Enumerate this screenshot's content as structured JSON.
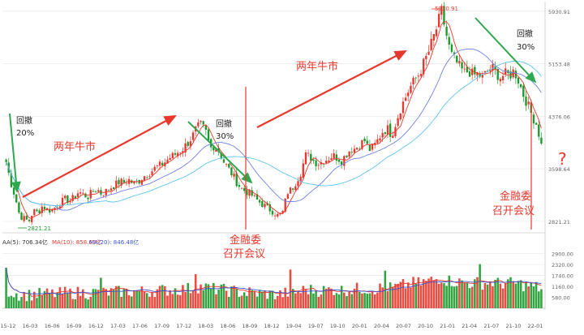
{
  "chart_data": [
    {
      "type": "candlestick",
      "name": "price",
      "y_ticks": [
        "5930.91",
        "5153.48",
        "4376.06",
        "3598.64",
        "2821.21"
      ],
      "y_tick_values": [
        5930.91,
        5153.48,
        4376.06,
        3598.64,
        2821.21
      ],
      "ylim": [
        2700,
        6000
      ],
      "x_ticks": [
        "15-12",
        "16-03",
        "16-06",
        "16-09",
        "16-12",
        "17-03",
        "17-06",
        "17-09",
        "17-12",
        "18-03",
        "18-06",
        "18-09",
        "18-12",
        "19-04",
        "19-07",
        "19-10",
        "20-01",
        "20-04",
        "20-07",
        "20-10",
        "21-01",
        "21-04",
        "21-07",
        "21-10",
        "22-01"
      ],
      "close_series": [
        3700,
        3400,
        3180,
        2900,
        2860,
        2821,
        2980,
        2950,
        3050,
        3000,
        2980,
        3040,
        3100,
        3150,
        3120,
        3180,
        3260,
        3220,
        3180,
        3260,
        3300,
        3230,
        3270,
        3320,
        3360,
        3410,
        3400,
        3440,
        3380,
        3400,
        3470,
        3520,
        3560,
        3620,
        3650,
        3700,
        3760,
        3800,
        3850,
        3900,
        3980,
        4070,
        4200,
        4250,
        4150,
        3900,
        3950,
        3850,
        3700,
        3600,
        3500,
        3380,
        3300,
        3260,
        3220,
        3150,
        3100,
        3050,
        3000,
        2960,
        2900,
        2960,
        3250,
        3300,
        3420,
        3550,
        3800,
        3780,
        3700,
        3680,
        3720,
        3750,
        3800,
        3760,
        3720,
        3820,
        3890,
        3900,
        3960,
        4020,
        3880,
        3920,
        4030,
        4150,
        4200,
        4100,
        4300,
        4500,
        4650,
        4800,
        4900,
        5000,
        5150,
        5300,
        5500,
        5700,
        5930,
        5600,
        5300,
        5200,
        5100,
        5020,
        5050,
        4980,
        5000,
        4950,
        5030,
        5100,
        5020,
        4950,
        5000,
        4980,
        5050,
        4900,
        4700,
        4550,
        4380,
        4250,
        3950
      ],
      "annotations": [
        {
          "text": "回撤"
        },
        {
          "text": "20%"
        },
        {
          "text": "两年牛市"
        },
        {
          "text": "回撤"
        },
        {
          "text": "30%"
        },
        {
          "text": "金融委"
        },
        {
          "text": "召开会议"
        },
        {
          "text": "两年牛市"
        },
        {
          "text": "回撤"
        },
        {
          "text": "30%"
        },
        {
          "text": "金融委"
        },
        {
          "text": "召开会议"
        },
        {
          "text": "?"
        }
      ],
      "point_labels": {
        "max": "5930.91",
        "min": "2821.21"
      },
      "ma_lines": [
        {
          "color": "#e8382e"
        },
        {
          "color": "#6f80e6"
        },
        {
          "color": "#5ec4ec"
        }
      ]
    },
    {
      "type": "bar",
      "name": "volume",
      "legend": [
        {
          "text": "AA(5): 706.34亿",
          "color": "#333333"
        },
        {
          "text": "MA(10): 858.63亿",
          "color": "#e8382e"
        },
        {
          "text": "MA(20): 846.48亿",
          "color": "#3b56d9"
        }
      ],
      "y_ticks": [
        "2900.00",
        "2320.00",
        "1740.00",
        "1160.00",
        "580.00"
      ],
      "y_tick_values": [
        2900,
        2320,
        1740,
        1160,
        580
      ],
      "ylim": [
        0,
        3100
      ]
    }
  ],
  "colors": {
    "up": "#e8382e",
    "down": "#1c9a2d",
    "arrow_up": "#e8382e",
    "arrow_down": "#2fa84f"
  }
}
